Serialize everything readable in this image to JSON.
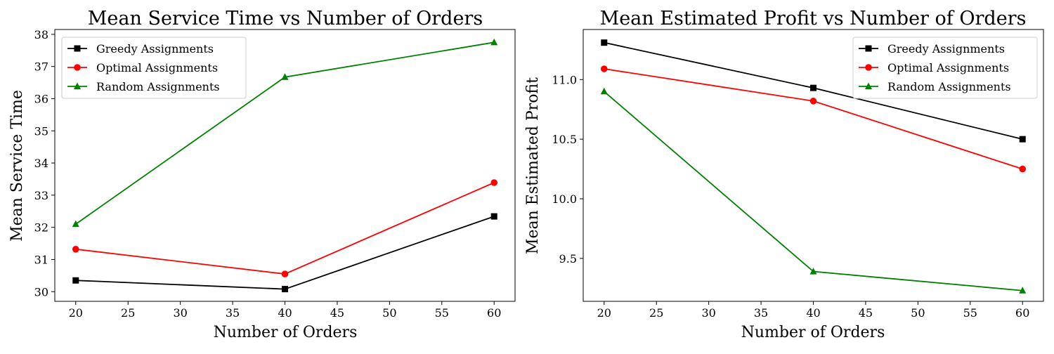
{
  "chart_data": [
    {
      "type": "line",
      "title": "Mean Service Time vs Number of Orders",
      "xlabel": "Number of Orders",
      "ylabel": "Mean Service Time",
      "xlim": [
        18,
        62
      ],
      "ylim": [
        29.7,
        38.15
      ],
      "xticks": [
        "20",
        "25",
        "30",
        "35",
        "40",
        "45",
        "50",
        "55",
        "60"
      ],
      "yticks": [
        "30",
        "31",
        "32",
        "33",
        "34",
        "35",
        "36",
        "37",
        "38"
      ],
      "grid": false,
      "legend_position": "upper-left",
      "x": [
        20,
        40,
        60
      ],
      "series": [
        {
          "name": "Greedy Assignments",
          "values": [
            30.35,
            30.08,
            32.34
          ],
          "color": "#000000",
          "marker": "square"
        },
        {
          "name": "Optimal Assignments",
          "values": [
            31.32,
            30.55,
            33.39
          ],
          "color": "#ff0000",
          "marker": "circle"
        },
        {
          "name": "Random Assignments",
          "values": [
            32.1,
            36.67,
            37.75
          ],
          "color": "#008000",
          "marker": "triangle"
        }
      ]
    },
    {
      "type": "line",
      "title": "Mean Estimated Profit vs Number of Orders",
      "xlabel": "Number of Orders",
      "ylabel": "Mean Estimated Profit",
      "xlim": [
        18,
        62
      ],
      "ylim": [
        9.14,
        11.42
      ],
      "xticks": [
        "20",
        "25",
        "30",
        "35",
        "40",
        "45",
        "50",
        "55",
        "60"
      ],
      "yticks": [
        "9.5",
        "10.0",
        "10.5",
        "11.0"
      ],
      "grid": false,
      "legend_position": "upper-right",
      "x": [
        20,
        40,
        60
      ],
      "series": [
        {
          "name": "Greedy Assignments",
          "values": [
            11.31,
            10.93,
            10.5
          ],
          "color": "#000000",
          "marker": "square"
        },
        {
          "name": "Optimal Assignments",
          "values": [
            11.09,
            10.82,
            10.25
          ],
          "color": "#ff0000",
          "marker": "circle"
        },
        {
          "name": "Random Assignments",
          "values": [
            10.9,
            9.39,
            9.23
          ],
          "color": "#008000",
          "marker": "triangle"
        }
      ]
    }
  ]
}
